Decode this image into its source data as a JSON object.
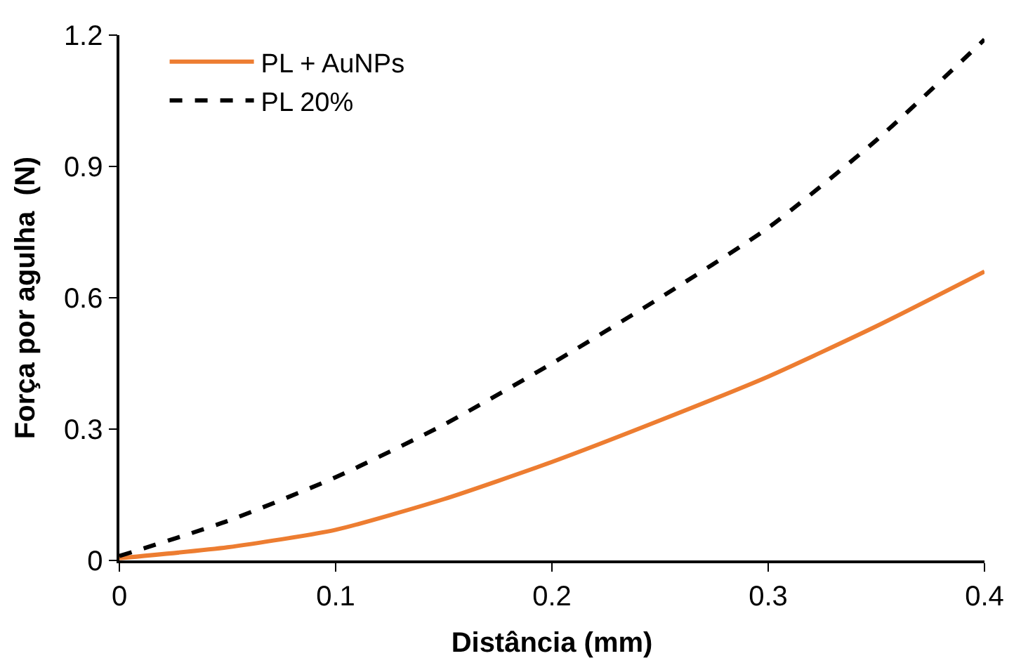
{
  "chart_data": {
    "type": "line",
    "xlabel": "Distância (mm)",
    "ylabel": "Força por agulha  (N)",
    "x": [
      0,
      0.05,
      0.1,
      0.15,
      0.2,
      0.25,
      0.3,
      0.35,
      0.4
    ],
    "series": [
      {
        "name": "PL + AuNPs",
        "color": "#ed7d31",
        "line_style": "solid",
        "values": [
          0.005,
          0.03,
          0.07,
          0.14,
          0.225,
          0.32,
          0.42,
          0.535,
          0.66
        ]
      },
      {
        "name": "PL 20%",
        "color": "#000000",
        "line_style": "dashed",
        "values": [
          0.01,
          0.09,
          0.19,
          0.31,
          0.45,
          0.6,
          0.76,
          0.96,
          1.19
        ]
      }
    ],
    "xlim": [
      0,
      0.4
    ],
    "xticks": [
      0,
      0.1,
      0.2,
      0.3,
      0.4
    ],
    "ylim": [
      0,
      1.2
    ],
    "yticks": [
      0,
      0.3,
      0.6,
      0.9,
      1.2
    ],
    "legend": "top left",
    "marker": "none"
  }
}
